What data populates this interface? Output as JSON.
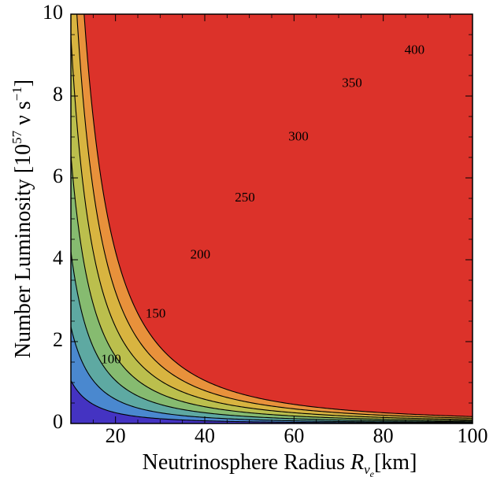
{
  "chart_data": {
    "type": "contour",
    "title": "",
    "xlabel": "Neutrinosphere Radius",
    "xlabel_symbol": "R",
    "xlabel_sub": "ν",
    "xlabel_subsub": "e",
    "xlabel_unit": "[km]",
    "ylabel": "Number Luminosity [10",
    "ylabel_exp": "57",
    "ylabel_unit": " ν s",
    "ylabel_unit_exp": "−1",
    "ylabel_close": "]",
    "xlim": [
      10,
      100
    ],
    "ylim": [
      0,
      10
    ],
    "x_ticks": [
      20,
      40,
      60,
      80,
      100
    ],
    "y_ticks": [
      0,
      2,
      4,
      6,
      8,
      10
    ],
    "contour_levels": [
      100,
      150,
      200,
      250,
      300,
      350,
      400
    ],
    "model": "L_N = k * (level / R)^2 (approximate shape)",
    "contour_label_positions": [
      {
        "level": 100,
        "x": 19,
        "y": 1.55
      },
      {
        "level": 150,
        "x": 29,
        "y": 2.66
      },
      {
        "level": 200,
        "x": 39,
        "y": 4.1
      },
      {
        "level": 250,
        "x": 49,
        "y": 5.5
      },
      {
        "level": 300,
        "x": 61,
        "y": 6.99
      },
      {
        "level": 350,
        "x": 73,
        "y": 8.3
      },
      {
        "level": 400,
        "x": 87,
        "y": 9.1
      }
    ],
    "band_colors": [
      "#4433c2",
      "#4a88cf",
      "#5ea9a2",
      "#86bb70",
      "#bbbf4d",
      "#d8b440",
      "#e8913b",
      "#dc322a"
    ],
    "grid": false,
    "legend": "none"
  }
}
